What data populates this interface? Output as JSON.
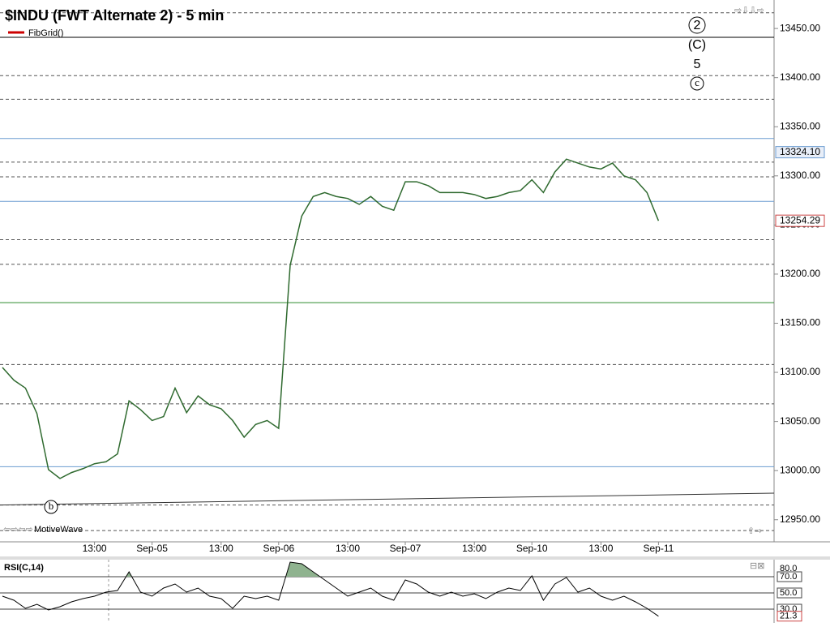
{
  "chart_data": [
    {
      "type": "line",
      "title": "$INDU (FWT Alternate 2) - 5 min",
      "indicator": "FibGrid()",
      "watermark": "MotiveWave",
      "categories": [
        null,
        null,
        null,
        null,
        null,
        null,
        null,
        null,
        "13:00",
        null,
        null,
        null,
        null,
        "Sep-05",
        null,
        null,
        null,
        null,
        null,
        "13:00",
        null,
        null,
        null,
        null,
        "Sep-06",
        null,
        null,
        null,
        null,
        null,
        "13:00",
        null,
        null,
        null,
        null,
        "Sep-07",
        null,
        null,
        null,
        null,
        null,
        "13:00",
        null,
        null,
        null,
        null,
        "Sep-10",
        null,
        null,
        null,
        null,
        null,
        "13:00",
        null,
        null,
        null,
        null,
        "Sep-11"
      ],
      "values": [
        13105,
        13092,
        13084,
        13058,
        13001,
        12992,
        12998,
        13002,
        13007,
        13009,
        13017,
        13071,
        13062,
        13051,
        13055,
        13084,
        13059,
        13076,
        13067,
        13063,
        13051,
        13034,
        13047,
        13051,
        13043,
        13209,
        13259,
        13279,
        13283,
        13279,
        13277,
        13271,
        13279,
        13269,
        13265,
        13294,
        13294,
        13290,
        13283,
        13283,
        13283,
        13281,
        13277,
        13279,
        13283,
        13285,
        13296,
        13283,
        13304,
        13317,
        13313,
        13309,
        13307,
        13313,
        13300,
        13296,
        13283,
        13254.29
      ],
      "color": "#2f6a2f",
      "ylim": [
        12927.5,
        13479
      ],
      "yticks": [
        {
          "value": 12950,
          "label": "12950.00"
        },
        {
          "value": 13000,
          "label": "13000.00"
        },
        {
          "value": 13050,
          "label": "13050.00"
        },
        {
          "value": 13100,
          "label": "13100.00"
        },
        {
          "value": 13150,
          "label": "13150.00"
        },
        {
          "value": 13200,
          "label": "13200.00"
        },
        {
          "value": 13250,
          "label": "13250.00"
        },
        {
          "value": 13300,
          "label": "13300.00"
        },
        {
          "value": 13350,
          "label": "13350.00"
        },
        {
          "value": 13400,
          "label": "13400.00"
        },
        {
          "value": 13450,
          "label": "13450.00"
        }
      ],
      "levels": [
        {
          "value": 13466,
          "color": "#555555",
          "dashed": true
        },
        {
          "value": 13441,
          "color": "#000000",
          "dashed": false
        },
        {
          "value": 13402,
          "color": "#555555",
          "dashed": true
        },
        {
          "value": 13378,
          "color": "#555555",
          "dashed": true
        },
        {
          "value": 13338,
          "color": "#6a9bd1",
          "dashed": false
        },
        {
          "value": 13314,
          "color": "#555555",
          "dashed": true
        },
        {
          "value": 13299,
          "color": "#555555",
          "dashed": true
        },
        {
          "value": 13274,
          "color": "#6a9bd1",
          "dashed": false
        },
        {
          "value": 13235,
          "color": "#555555",
          "dashed": true
        },
        {
          "value": 13210,
          "color": "#555555",
          "dashed": true
        },
        {
          "value": 13171,
          "color": "#2e8b2e",
          "dashed": false
        },
        {
          "value": 13108,
          "color": "#555555",
          "dashed": true
        },
        {
          "value": 13068,
          "color": "#555555",
          "dashed": true
        },
        {
          "value": 13004,
          "color": "#6a9bd1",
          "dashed": false
        },
        {
          "value": 12965,
          "color": "#555555",
          "dashed": true
        },
        {
          "value": 12939,
          "color": "#555555",
          "dashed": true
        }
      ],
      "trendline": {
        "values": [
          12965,
          12977
        ],
        "color": "#333333"
      },
      "price_markers": [
        {
          "value": 13324.1,
          "label": "13324.10"
        }
      ],
      "annotations": [
        "2",
        "(C)",
        "5",
        "c",
        "b"
      ]
    },
    {
      "type": "line",
      "title": "RSI(C,14)",
      "values": [
        46,
        41,
        31,
        36,
        29,
        33,
        39,
        43,
        46,
        51,
        53,
        76,
        51,
        46,
        56,
        61,
        51,
        56,
        46,
        43,
        31,
        46,
        43,
        46,
        41,
        88,
        86,
        76,
        66,
        56,
        46,
        51,
        56,
        46,
        41,
        66,
        61,
        51,
        46,
        51,
        46,
        49,
        43,
        51,
        56,
        53,
        71,
        41,
        61,
        69,
        51,
        56,
        46,
        41,
        46,
        39,
        31,
        21.3
      ],
      "color": "#000000",
      "fill": "#8fb38f",
      "ylim": [
        13,
        91
      ],
      "yticks": [
        {
          "value": 30,
          "label": "30.0"
        },
        {
          "value": 50,
          "label": "50.0"
        },
        {
          "value": 70,
          "label": "70.0"
        },
        {
          "value": 80,
          "label": "80.0"
        }
      ]
    }
  ]
}
